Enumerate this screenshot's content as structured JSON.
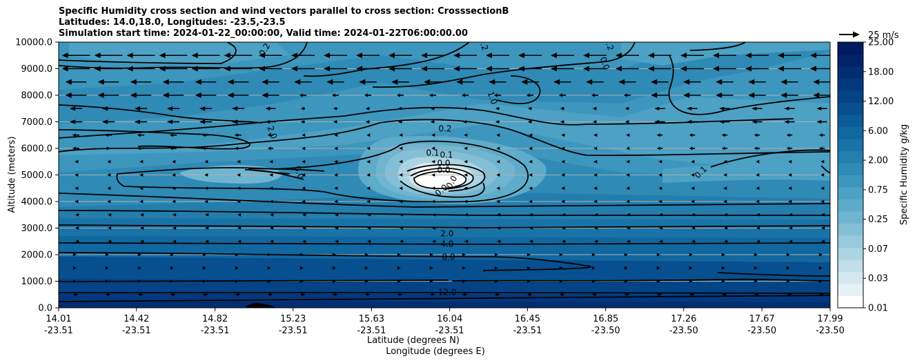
{
  "chart_data": {
    "type": "heatmap",
    "title_lines": [
      "Specific Humidity cross section and wind vectors parallel to cross section: CrosssectionB",
      "Latitudes: 14.0,18.0, Longitudes: -23.5,-23.5",
      "Simulation start time: 2024-01-22_00:00:00, Valid time: 2024-01-22T06:00:00.00"
    ],
    "ylabel": "Altitude (meters)",
    "xlabel_lines": [
      "Latitude (degrees N)",
      "Longitude (degrees E)"
    ],
    "ylim": [
      0,
      10000
    ],
    "yticks": [
      "0.0",
      "1000.0",
      "2000.0",
      "3000.0",
      "4000.0",
      "5000.0",
      "6000.0",
      "7000.0",
      "8000.0",
      "9000.0",
      "10000.0"
    ],
    "xticks": [
      {
        "lat": "14.01",
        "lon": "-23.51"
      },
      {
        "lat": "14.42",
        "lon": "-23.51"
      },
      {
        "lat": "14.82",
        "lon": "-23.51"
      },
      {
        "lat": "15.23",
        "lon": "-23.51"
      },
      {
        "lat": "15.63",
        "lon": "-23.51"
      },
      {
        "lat": "16.04",
        "lon": "-23.51"
      },
      {
        "lat": "16.45",
        "lon": "-23.51"
      },
      {
        "lat": "16.85",
        "lon": "-23.50"
      },
      {
        "lat": "17.26",
        "lon": "-23.50"
      },
      {
        "lat": "17.67",
        "lon": "-23.50"
      },
      {
        "lat": "17.99",
        "lon": "-23.50"
      }
    ],
    "colorbar": {
      "label": "Specific Humidity g/kg",
      "levels": [
        0.01,
        0.02,
        0.03,
        0.05,
        0.07,
        0.1,
        0.15,
        0.25,
        0.35,
        0.5,
        0.75,
        1.0,
        1.5,
        2.0,
        3.0,
        4.0,
        6.0,
        8.0,
        12.0,
        15.0,
        18.0,
        22.0,
        25.0
      ],
      "tick_labels": [
        "0.01",
        "0.03",
        "0.07",
        "0.25",
        "0.75",
        "2.00",
        "6.00",
        "12.00",
        "18.00",
        "25.00"
      ],
      "colors": [
        "#ffffff",
        "#e6f1f5",
        "#d4e8ef",
        "#c0dde8",
        "#acd3e2",
        "#98c9dc",
        "#84bfd6",
        "#70b5d0",
        "#5eabca",
        "#4da1c4",
        "#3d96bd",
        "#2f8ab6",
        "#237eae",
        "#1973a7",
        "#1167a0",
        "#0b5b98",
        "#074f8f",
        "#044386",
        "#03387d",
        "#022d73",
        "#02236a",
        "#011a60"
      ],
      "grid": true
    },
    "wind_key": {
      "label": "25 m/s",
      "direction": "east"
    },
    "contour_labels": [
      "0.2",
      "0.2",
      "0.2",
      "0.0",
      "1.0",
      "2.0",
      "0.2",
      "0.1",
      "0.1",
      "0.0",
      "0.0",
      "0.0",
      "0.0",
      "0.0",
      "0.1",
      "2.0",
      "4.0",
      "8.0",
      "12.0"
    ],
    "wind_summary": {
      "upper_levels": "easterly (pointing west), strongest above 7000 m",
      "lower_levels": "weak westerly near surface"
    }
  }
}
